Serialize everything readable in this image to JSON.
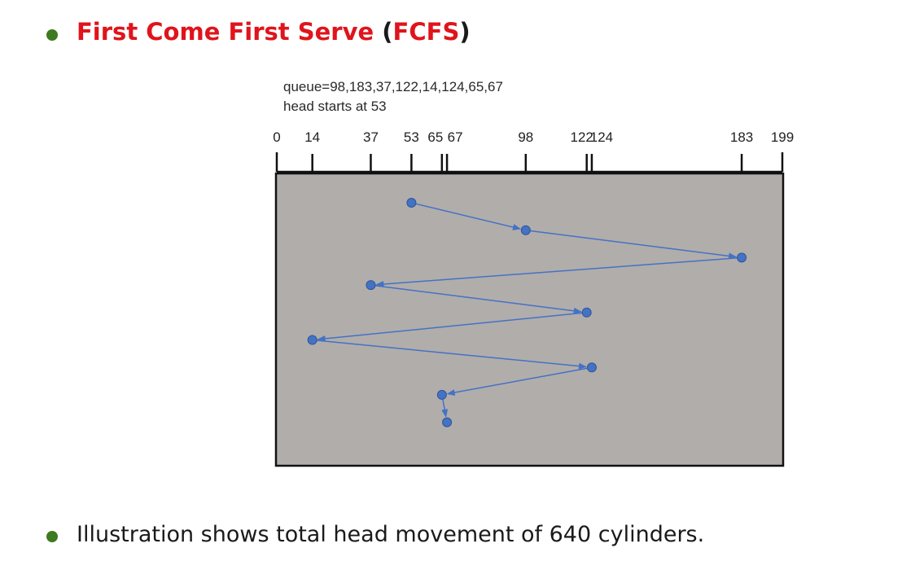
{
  "heading": {
    "title": "First Come First Serve",
    "open_paren": "(",
    "abbrev": "FCFS",
    "close_paren": ")"
  },
  "diagram": {
    "queue_line": "queue=98,183,37,122,14,124,65,67",
    "head_line": "head starts at 53",
    "axis_ticks": [
      0,
      14,
      37,
      53,
      65,
      67,
      98,
      122,
      124,
      183,
      199
    ],
    "head_path": [
      53,
      98,
      183,
      37,
      122,
      14,
      124,
      65,
      67
    ]
  },
  "note": "Illustration shows total head movement of 640 cylinders.",
  "colors": {
    "bullet": "#3e7a1f",
    "heading_red": "#e0141b",
    "panel_bg": "#b1adab",
    "path": "#4472c4"
  }
}
